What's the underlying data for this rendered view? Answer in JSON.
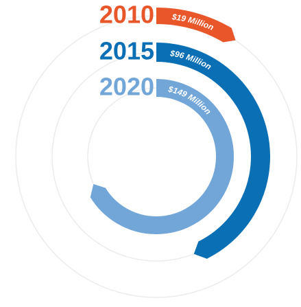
{
  "chart_data": {
    "type": "radial_bar",
    "categories": [
      "2010",
      "2015",
      "2020"
    ],
    "values": [
      19,
      96,
      149
    ],
    "value_labels": [
      "$19 Million",
      "$96 Million",
      "$149 Million"
    ],
    "colors": [
      "#e8562a",
      "#0b6fb5",
      "#72a6d8"
    ]
  }
}
